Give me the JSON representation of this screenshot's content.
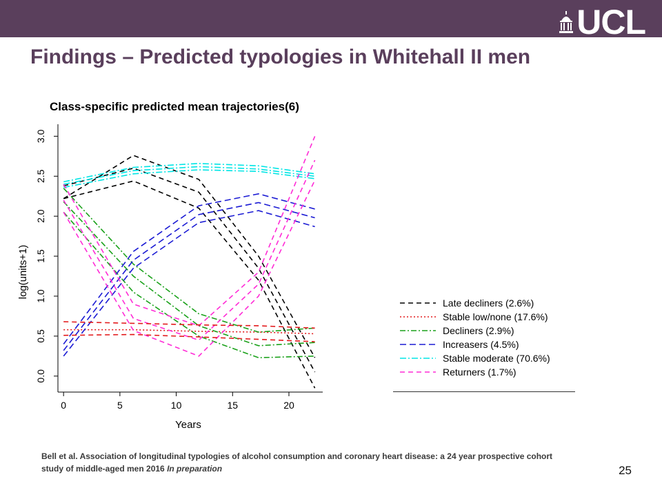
{
  "theme": {
    "banner_color": "#5a3f5c",
    "title_color": "#5a3f5c"
  },
  "logo": {
    "text": "UCL",
    "icon": "ucl-portico-icon"
  },
  "slide": {
    "title": "Findings – Predicted typologies in Whitehall II men",
    "citation": "Bell et al. Association of longitudinal typologies of alcohol consumption and coronary heart disease: a 24 year prospective cohort study of middle-aged men 2016",
    "citation_emphasis": "In preparation",
    "page_number": "25"
  },
  "chart_data": {
    "type": "line",
    "title": "Class-specific predicted mean trajectories(6)",
    "xlabel": "Years",
    "ylabel": "log(units+1)",
    "xlim": [
      -0.5,
      23
    ],
    "ylim": [
      -0.2,
      3.15
    ],
    "x_ticks": [
      0,
      5,
      10,
      15,
      20
    ],
    "y_ticks": [
      0.0,
      0.5,
      1.0,
      1.5,
      2.0,
      2.5,
      3.0
    ],
    "y_tick_labels": [
      "0.0",
      "0.5",
      "1.0",
      "1.5",
      "2.0",
      "2.5",
      "3.0"
    ],
    "grid": false,
    "legend_position": "right",
    "series": [
      {
        "name": "Late decliners (2.6%)",
        "color": "#000000",
        "dash": "7,5",
        "lines": [
          {
            "x": [
              0,
              6.2,
              12,
              17.3,
              22.3
            ],
            "y": [
              2.22,
              2.44,
              2.1,
              1.2,
              -0.15
            ]
          },
          {
            "x": [
              0,
              6.2,
              12,
              17.3,
              22.3
            ],
            "y": [
              2.38,
              2.6,
              2.3,
              1.35,
              0.05
            ]
          },
          {
            "x": [
              0,
              6.2,
              12,
              17.3,
              22.3
            ],
            "y": [
              2.22,
              2.76,
              2.46,
              1.5,
              0.23
            ]
          }
        ]
      },
      {
        "name": "Stable low/none (17.6%)",
        "color": "#e31a1c",
        "dash": "2,3",
        "lines": [
          {
            "x": [
              0,
              6.2,
              12,
              17.3,
              22.3
            ],
            "y": [
              0.58,
              0.58,
              0.56,
              0.55,
              0.53
            ]
          }
        ]
      },
      {
        "name": "Decliners (2.9%)",
        "color": "#1aa11a",
        "dash": "8,3,2,3",
        "lines": [
          {
            "x": [
              0,
              6.2,
              12,
              17.3,
              22.3
            ],
            "y": [
              2.05,
              1.05,
              0.5,
              0.23,
              0.25
            ]
          },
          {
            "x": [
              0,
              6.2,
              12,
              17.3,
              22.3
            ],
            "y": [
              2.18,
              1.25,
              0.63,
              0.38,
              0.42
            ]
          },
          {
            "x": [
              0,
              6.2,
              12,
              17.3,
              22.3
            ],
            "y": [
              2.35,
              1.4,
              0.78,
              0.55,
              0.6
            ]
          }
        ]
      },
      {
        "name": "Increasers (4.5%)",
        "color": "#1a1ad4",
        "dash": "9,5",
        "lines": [
          {
            "x": [
              0,
              6.2,
              12,
              17.3,
              22.3
            ],
            "y": [
              0.25,
              1.35,
              1.92,
              2.07,
              1.87
            ]
          },
          {
            "x": [
              0,
              6.2,
              12,
              17.3,
              22.3
            ],
            "y": [
              0.32,
              1.45,
              2.02,
              2.17,
              1.98
            ]
          },
          {
            "x": [
              0,
              6.2,
              12,
              17.3,
              22.3
            ],
            "y": [
              0.4,
              1.56,
              2.13,
              2.28,
              2.09
            ]
          }
        ]
      },
      {
        "name": "Stable moderate (70.6%)",
        "color": "#00e5e5",
        "dash": "9,3,2,3",
        "lines": [
          {
            "x": [
              0,
              6.2,
              12,
              17.3,
              22.3
            ],
            "y": [
              2.36,
              2.53,
              2.58,
              2.56,
              2.47
            ]
          },
          {
            "x": [
              0,
              6.2,
              12,
              17.3,
              22.3
            ],
            "y": [
              2.4,
              2.57,
              2.62,
              2.59,
              2.5
            ]
          },
          {
            "x": [
              0,
              6.2,
              12,
              17.3,
              22.3
            ],
            "y": [
              2.43,
              2.61,
              2.66,
              2.63,
              2.53
            ]
          }
        ]
      },
      {
        "name": "Returners (1.7%)",
        "color": "#ff2bd6",
        "dash": "7,5",
        "lines": [
          {
            "x": [
              0,
              6.2,
              12,
              17.3,
              22.3
            ],
            "y": [
              2.05,
              0.57,
              0.25,
              1.0,
              2.45
            ]
          },
          {
            "x": [
              0,
              6.2,
              12,
              17.3,
              22.3
            ],
            "y": [
              2.2,
              0.72,
              0.45,
              1.15,
              2.7
            ]
          },
          {
            "x": [
              0,
              6.2,
              12,
              17.3,
              22.3
            ],
            "y": [
              2.4,
              0.9,
              0.63,
              1.3,
              3.0
            ]
          }
        ]
      }
    ],
    "reference_lines": [
      {
        "series": "Stable low/none (17.6%)",
        "color": "#e31a1c",
        "dash": "7,5",
        "x": [
          0,
          6.2,
          12,
          17.3,
          22.3
        ],
        "y": [
          0.68,
          0.66,
          0.64,
          0.63,
          0.6
        ]
      },
      {
        "series": "Stable low/none (17.6%)",
        "color": "#e31a1c",
        "dash": "7,5",
        "x": [
          0,
          6.2,
          12,
          17.3,
          22.3
        ],
        "y": [
          0.51,
          0.52,
          0.49,
          0.46,
          0.43
        ]
      }
    ]
  }
}
